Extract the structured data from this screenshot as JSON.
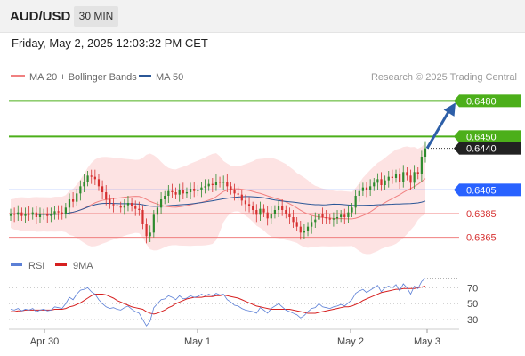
{
  "header": {
    "symbol": "AUD/USD",
    "timeframe": "30 MIN",
    "datetime": "Friday, May 2, 2025 12:03:32 PM CET"
  },
  "legend": {
    "ma20_label": "MA 20 + Bollinger Bands",
    "ma50_label": "MA 50",
    "credit": "Research © 2025 Trading Central",
    "ma20_color": "#f08080",
    "ma50_color": "#2b5797"
  },
  "rsi_legend": {
    "rsi_label": "RSI",
    "ma_label": "9MA",
    "rsi_color": "#5b7fd6",
    "ma_color": "#d62020"
  },
  "colors": {
    "up": "#2e8b2e",
    "down": "#d63030",
    "resistance": "#4caf1a",
    "pivot": "#2962ff",
    "support": "#f08080",
    "band_fill": "#fde3e3",
    "arrow": "#2d5fa8",
    "price_tag": "#222222"
  },
  "chart_data": [
    {
      "type": "candlestick",
      "title": "AUD/USD",
      "interval": "30 MIN",
      "ylim": [
        0.6355,
        0.649
      ],
      "x_ticks": [
        "Apr 30",
        "May 1",
        "May 2",
        "May 3"
      ],
      "last_price": 0.644,
      "levels": [
        {
          "value": 0.648,
          "label": "0.6480",
          "kind": "resistance"
        },
        {
          "value": 0.645,
          "label": "0.6450",
          "kind": "resistance"
        },
        {
          "value": 0.6405,
          "label": "0.6405",
          "kind": "pivot"
        },
        {
          "value": 0.6385,
          "label": "0.6385",
          "kind": "support"
        },
        {
          "value": 0.6365,
          "label": "0.6365",
          "kind": "support"
        }
      ],
      "projection": {
        "from": 0.644,
        "to": 0.648
      },
      "close": [
        0.6385,
        0.6384,
        0.6386,
        0.6383,
        0.6385,
        0.6384,
        0.6386,
        0.6382,
        0.6384,
        0.6385,
        0.6383,
        0.6384,
        0.6387,
        0.6386,
        0.6385,
        0.639,
        0.6397,
        0.6395,
        0.6402,
        0.6408,
        0.6412,
        0.6417,
        0.6416,
        0.6414,
        0.6408,
        0.6403,
        0.6397,
        0.6393,
        0.6392,
        0.6391,
        0.639,
        0.6392,
        0.6394,
        0.6391,
        0.6389,
        0.6388,
        0.6376,
        0.6366,
        0.6369,
        0.6384,
        0.639,
        0.6397,
        0.64,
        0.6404,
        0.6403,
        0.6401,
        0.6405,
        0.6402,
        0.6403,
        0.6406,
        0.6404,
        0.6405,
        0.6407,
        0.6408,
        0.641,
        0.6409,
        0.6412,
        0.6411,
        0.6412,
        0.6408,
        0.6405,
        0.6402,
        0.6401,
        0.6396,
        0.6393,
        0.6391,
        0.6388,
        0.6384,
        0.6389,
        0.6386,
        0.6381,
        0.6385,
        0.6388,
        0.6391,
        0.6388,
        0.6385,
        0.6382,
        0.6378,
        0.6374,
        0.6369,
        0.637,
        0.6374,
        0.6378,
        0.638,
        0.6385,
        0.6382,
        0.6381,
        0.638,
        0.6381,
        0.6382,
        0.6384,
        0.6382,
        0.6386,
        0.639,
        0.64,
        0.6404,
        0.6407,
        0.6405,
        0.6408,
        0.6411,
        0.6414,
        0.6409,
        0.6413,
        0.6416,
        0.6415,
        0.6418,
        0.6412,
        0.642,
        0.6417,
        0.6411,
        0.642,
        0.6418,
        0.6433,
        0.644
      ]
    },
    {
      "type": "line",
      "title": "RSI",
      "ylim": [
        20,
        85
      ],
      "y_ticks": [
        70,
        50,
        30
      ],
      "series": [
        {
          "name": "RSI",
          "values": [
            43,
            42,
            44,
            41,
            43,
            42,
            44,
            40,
            42,
            43,
            41,
            42,
            46,
            45,
            44,
            50,
            58,
            55,
            62,
            67,
            68,
            70,
            65,
            62,
            55,
            50,
            46,
            44,
            45,
            43,
            42,
            45,
            47,
            43,
            40,
            38,
            30,
            22,
            28,
            45,
            50,
            55,
            56,
            60,
            58,
            55,
            60,
            56,
            57,
            60,
            58,
            59,
            62,
            60,
            62,
            60,
            63,
            61,
            62,
            55,
            52,
            48,
            47,
            44,
            42,
            41,
            40,
            38,
            45,
            42,
            38,
            44,
            47,
            50,
            46,
            42,
            40,
            38,
            36,
            32,
            35,
            40,
            44,
            45,
            50,
            46,
            45,
            44,
            46,
            47,
            49,
            47,
            51,
            55,
            63,
            66,
            68,
            64,
            67,
            70,
            73,
            65,
            70,
            72,
            70,
            74,
            66,
            75,
            70,
            62,
            72,
            69,
            78,
            82
          ]
        },
        {
          "name": "9MA",
          "values": [
            40,
            40,
            41,
            41,
            42,
            42,
            42,
            42,
            42,
            42,
            42,
            42,
            43,
            43,
            43,
            44,
            46,
            47,
            49,
            51,
            54,
            57,
            60,
            62,
            62,
            62,
            61,
            59,
            57,
            54,
            52,
            50,
            48,
            46,
            45,
            44,
            43,
            40,
            38,
            37,
            38,
            40,
            42,
            45,
            47,
            50,
            52,
            54,
            56,
            57,
            58,
            58,
            58,
            59,
            59,
            59,
            60,
            60,
            61,
            60,
            59,
            58,
            57,
            55,
            53,
            51,
            49,
            47,
            46,
            45,
            44,
            43,
            43,
            43,
            43,
            43,
            43,
            42,
            41,
            40,
            39,
            38,
            38,
            38,
            39,
            40,
            41,
            42,
            43,
            44,
            45,
            46,
            46,
            47,
            49,
            51,
            54,
            56,
            58,
            60,
            62,
            64,
            65,
            66,
            67,
            68,
            68,
            69,
            69,
            69,
            69,
            70,
            71,
            72
          ]
        }
      ]
    }
  ]
}
